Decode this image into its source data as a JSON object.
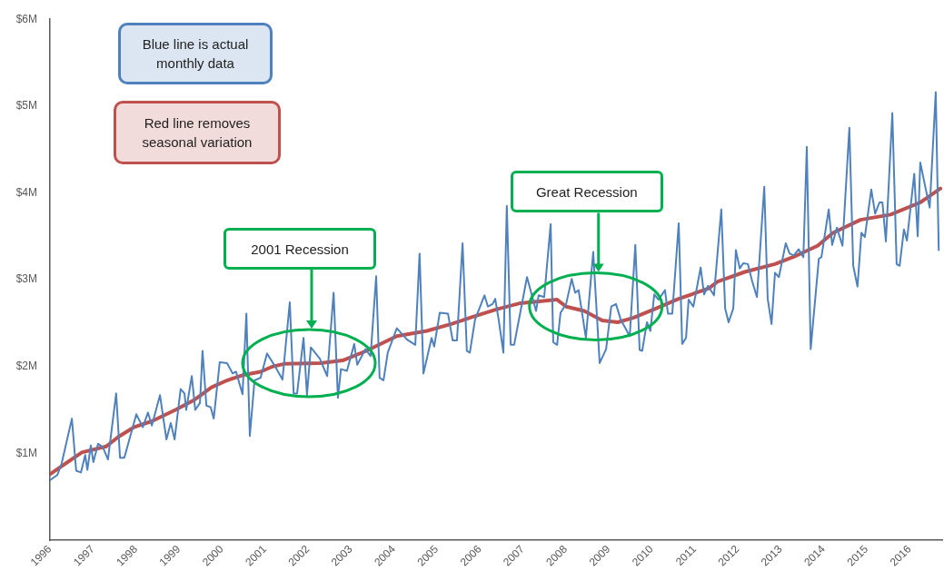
{
  "chart_data": {
    "type": "line",
    "xlim": [
      1996,
      2016.76
    ],
    "xticks": [
      1996,
      1997,
      1998,
      1999,
      2000,
      2001,
      2002,
      2003,
      2004,
      2005,
      2006,
      2007,
      2008,
      2009,
      2010,
      2011,
      2012,
      2013,
      2014,
      2015,
      2016
    ],
    "ylim": [
      0,
      6
    ],
    "yticks": [
      {
        "value": 1,
        "label": "$1M"
      },
      {
        "value": 2,
        "label": "$2M"
      },
      {
        "value": 3,
        "label": "$3M"
      },
      {
        "value": 4,
        "label": "$4M"
      },
      {
        "value": 5,
        "label": "$5M"
      },
      {
        "value": 6,
        "label": "$6M"
      }
    ],
    "grid": false,
    "legend": false,
    "marker": "none",
    "line_style": "solid",
    "annotations": [
      "Blue line is actual monthly data",
      "Red line removes seasonal variation",
      "2001 Recession",
      {
        "text": "Great Recession",
        "x": 2008.7,
        "y": 3.09
      }
    ],
    "series": [
      {
        "color": "#4f81bd",
        "x": [
          1996.0,
          1996.17,
          1996.27,
          1996.51,
          1996.61,
          1996.72,
          1996.82,
          1996.87,
          1996.95,
          1997.01,
          1997.12,
          1997.23,
          1997.35,
          1997.54,
          1997.63,
          1997.73,
          1998.01,
          1998.16,
          1998.28,
          1998.37,
          1998.56,
          1998.71,
          1998.81,
          1998.9,
          1999.04,
          1999.13,
          1999.17,
          1999.3,
          1999.38,
          1999.49,
          1999.55,
          1999.64,
          1999.74,
          1999.81,
          1999.95,
          2000.12,
          2000.25,
          2000.33,
          2000.48,
          2000.57,
          2000.65,
          2000.76,
          2000.9,
          2001.05,
          2001.24,
          2001.41,
          2001.58,
          2001.67,
          2001.75,
          2001.9,
          2001.98,
          2002.07,
          2002.28,
          2002.45,
          2002.6,
          2002.7,
          2002.77,
          2002.91,
          2003.08,
          2003.15,
          2003.34,
          2003.46,
          2003.59,
          2003.67,
          2003.76,
          2003.86,
          2004.07,
          2004.31,
          2004.5,
          2004.6,
          2004.69,
          2004.88,
          2004.94,
          2005.07,
          2005.26,
          2005.37,
          2005.47,
          2005.6,
          2005.7,
          2005.77,
          2005.89,
          2006.11,
          2006.19,
          2006.3,
          2006.36,
          2006.44,
          2006.55,
          2006.63,
          2006.72,
          2006.8,
          2006.95,
          2007.1,
          2007.31,
          2007.37,
          2007.5,
          2007.65,
          2007.71,
          2007.8,
          2007.88,
          2008.01,
          2008.14,
          2008.22,
          2008.3,
          2008.47,
          2008.64,
          2008.79,
          2008.94,
          2009.06,
          2009.17,
          2009.28,
          2009.49,
          2009.62,
          2009.72,
          2009.78,
          2009.89,
          2009.97,
          2010.06,
          2010.16,
          2010.31,
          2010.38,
          2010.48,
          2010.63,
          2010.71,
          2010.8,
          2010.86,
          2010.97,
          2011.14,
          2011.22,
          2011.31,
          2011.45,
          2011.62,
          2011.71,
          2011.79,
          2011.9,
          2011.96,
          2012.05,
          2012.13,
          2012.24,
          2012.34,
          2012.45,
          2012.62,
          2012.7,
          2012.79,
          2012.87,
          2012.96,
          2013.12,
          2013.21,
          2013.31,
          2013.42,
          2013.53,
          2013.61,
          2013.7,
          2013.89,
          2013.95,
          2014.12,
          2014.2,
          2014.31,
          2014.44,
          2014.6,
          2014.69,
          2014.79,
          2014.88,
          2014.96,
          2015.11,
          2015.2,
          2015.3,
          2015.37,
          2015.45,
          2015.6,
          2015.7,
          2015.77,
          2015.87,
          2015.94,
          2016.11,
          2016.19,
          2016.25,
          2016.4,
          2016.47,
          2016.61,
          2016.68
        ],
        "values": [
          0.69,
          0.75,
          0.88,
          1.4,
          0.8,
          0.78,
          0.98,
          0.81,
          1.09,
          0.9,
          1.11,
          1.07,
          0.93,
          1.69,
          0.95,
          0.95,
          1.45,
          1.3,
          1.47,
          1.32,
          1.67,
          1.16,
          1.35,
          1.16,
          1.74,
          1.69,
          1.5,
          1.89,
          1.5,
          1.58,
          2.18,
          1.55,
          1.53,
          1.4,
          2.05,
          2.04,
          1.92,
          1.94,
          1.68,
          2.61,
          1.2,
          1.84,
          1.87,
          2.15,
          2.0,
          1.85,
          2.74,
          1.69,
          1.69,
          2.33,
          1.67,
          2.22,
          2.09,
          1.89,
          2.85,
          1.64,
          1.97,
          1.95,
          2.26,
          2.02,
          2.2,
          2.12,
          3.04,
          1.87,
          1.84,
          2.16,
          2.44,
          2.31,
          2.25,
          3.3,
          1.92,
          2.33,
          2.23,
          2.62,
          2.61,
          2.3,
          2.3,
          3.42,
          2.18,
          2.16,
          2.54,
          2.82,
          2.69,
          2.72,
          2.78,
          2.54,
          2.16,
          3.85,
          2.25,
          2.25,
          2.64,
          3.03,
          2.64,
          2.82,
          2.8,
          3.64,
          2.28,
          2.25,
          2.62,
          2.72,
          3.01,
          2.85,
          2.88,
          2.33,
          3.32,
          2.04,
          2.2,
          2.69,
          2.72,
          2.54,
          2.35,
          3.4,
          2.19,
          2.18,
          2.51,
          2.41,
          2.83,
          2.77,
          2.88,
          2.61,
          2.61,
          3.65,
          2.26,
          2.33,
          2.77,
          2.69,
          3.14,
          2.83,
          2.93,
          2.82,
          3.81,
          2.67,
          2.51,
          2.67,
          3.34,
          3.13,
          3.19,
          3.18,
          2.98,
          2.8,
          4.07,
          2.78,
          2.49,
          3.08,
          3.03,
          3.42,
          3.3,
          3.28,
          3.35,
          3.26,
          4.53,
          2.2,
          3.24,
          3.26,
          3.81,
          3.4,
          3.6,
          3.39,
          4.75,
          3.16,
          2.92,
          3.54,
          3.49,
          4.04,
          3.76,
          3.89,
          3.89,
          3.44,
          4.92,
          3.18,
          3.16,
          3.58,
          3.45,
          4.22,
          3.5,
          4.35,
          3.99,
          3.83,
          5.16,
          3.34
        ]
      },
      {
        "color": "#c0504d",
        "x": [
          1996.0,
          1996.74,
          1997.31,
          1997.59,
          1997.95,
          1998.37,
          1998.92,
          1999.34,
          1999.76,
          2000.12,
          2000.48,
          2000.9,
          2001.18,
          2001.45,
          2002.3,
          2002.81,
          2003.36,
          2004.07,
          2004.77,
          2005.34,
          2005.83,
          2006.4,
          2006.95,
          2007.8,
          2008.01,
          2008.43,
          2008.85,
          2009.21,
          2009.57,
          2010.06,
          2010.63,
          2011.33,
          2011.54,
          2012.17,
          2012.87,
          2013.29,
          2013.86,
          2014.22,
          2014.86,
          2015.56,
          2016.25,
          2016.72
        ],
        "values": [
          0.76,
          1.01,
          1.08,
          1.19,
          1.3,
          1.37,
          1.5,
          1.61,
          1.76,
          1.84,
          1.9,
          1.94,
          2.0,
          2.03,
          2.04,
          2.07,
          2.18,
          2.35,
          2.41,
          2.49,
          2.57,
          2.66,
          2.73,
          2.77,
          2.69,
          2.64,
          2.53,
          2.51,
          2.56,
          2.66,
          2.78,
          2.9,
          2.98,
          3.09,
          3.18,
          3.26,
          3.39,
          3.54,
          3.69,
          3.75,
          3.89,
          4.05
        ]
      }
    ]
  }
}
